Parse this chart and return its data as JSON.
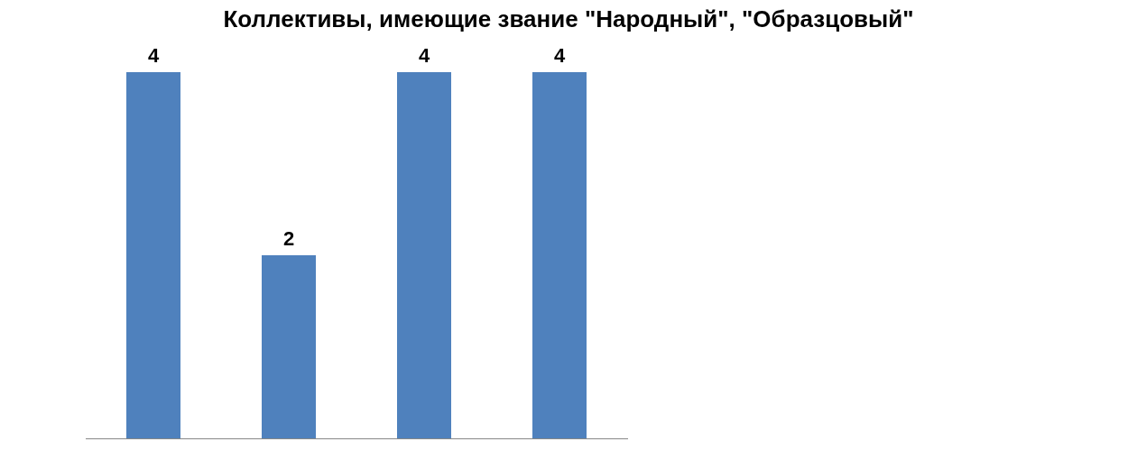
{
  "chart_data": {
    "type": "bar",
    "title": "Коллективы, имеющие звание \"Народный\", \"Образцовый\"",
    "categories": [
      null,
      null,
      null,
      null
    ],
    "values": [
      4,
      2,
      4,
      4
    ],
    "color": "#4f81bd",
    "data_labels": true,
    "grid": false,
    "legend": false
  }
}
